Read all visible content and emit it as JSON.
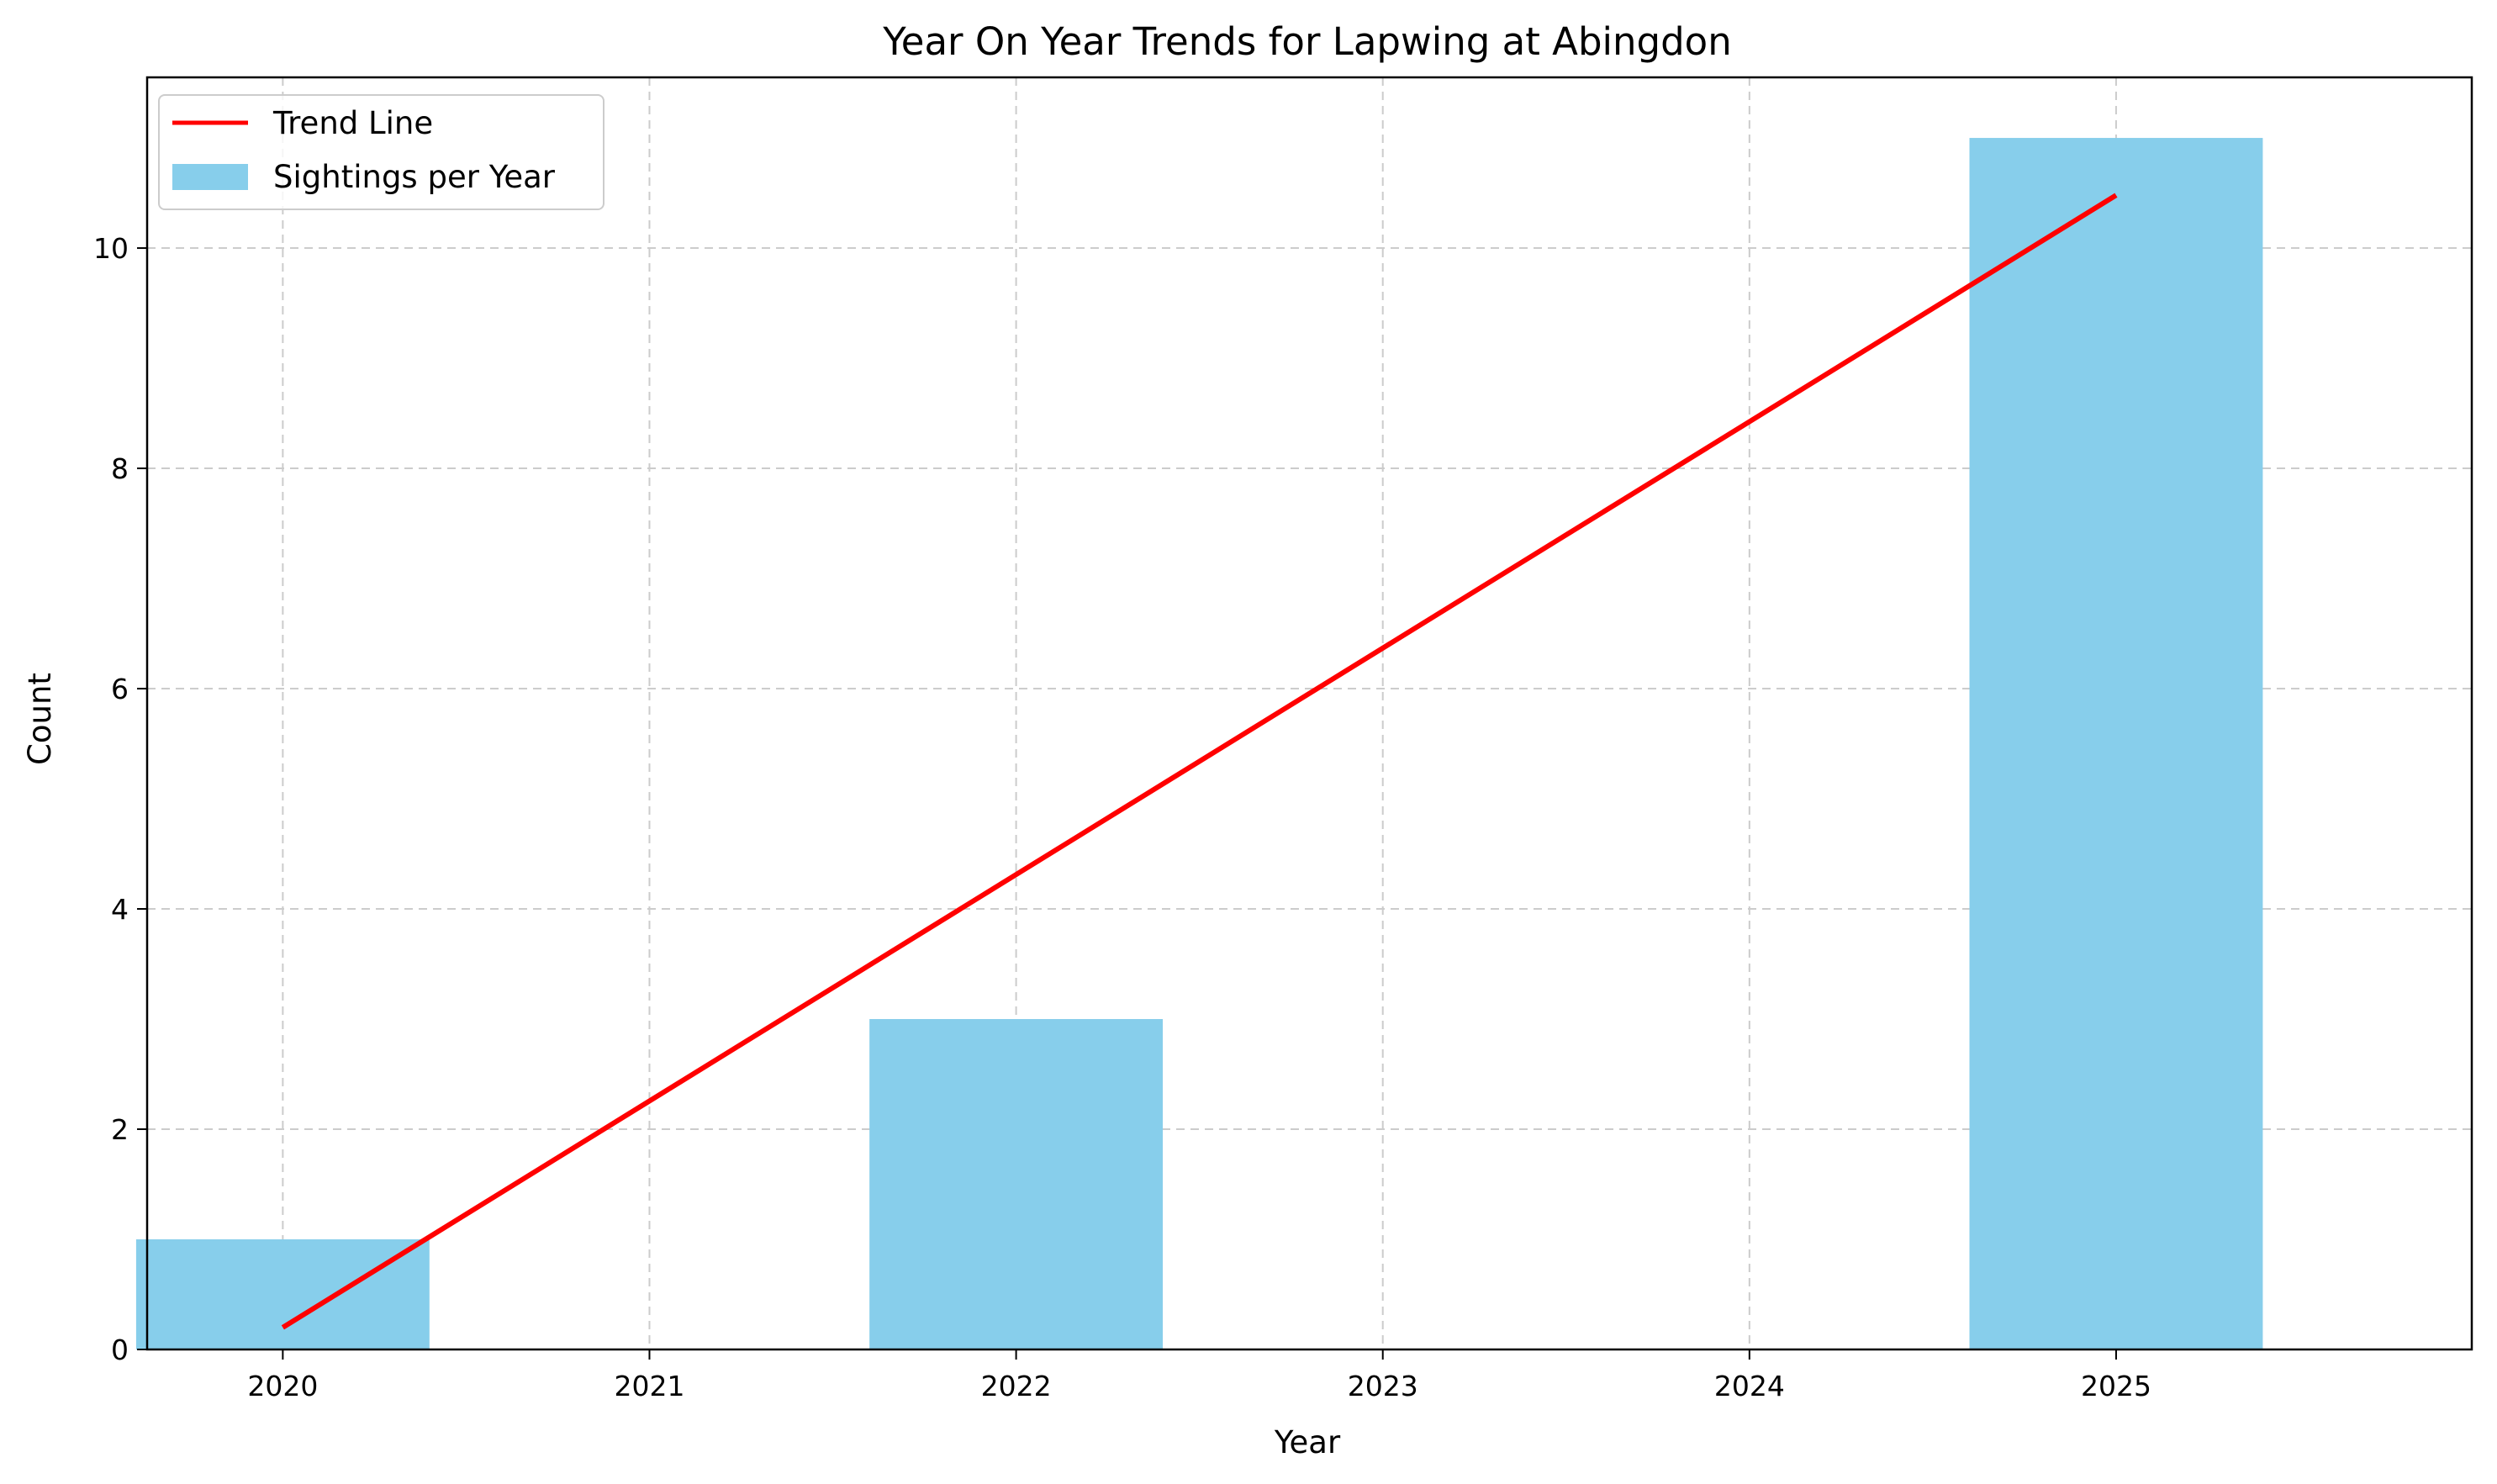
{
  "chart_data": {
    "type": "bar",
    "title": "Year On Year Trends for Lapwing at Abingdon",
    "xlabel": "Year",
    "ylabel": "Count",
    "categories": [
      "2020",
      "2021",
      "2022",
      "2023",
      "2024",
      "2025"
    ],
    "x": [
      2020,
      2021,
      2022,
      2023,
      2024,
      2025
    ],
    "xlim": [
      2019.63,
      2025.97
    ],
    "ylim": [
      0,
      11.55
    ],
    "yticks": [
      0,
      2,
      4,
      6,
      8,
      10
    ],
    "bar_width": 0.8,
    "series": [
      {
        "name": "Sightings per Year",
        "type": "bar",
        "color": "#87ceeb",
        "values": [
          1,
          0,
          3,
          0,
          0,
          11
        ]
      },
      {
        "name": "Trend Line",
        "type": "line",
        "color": "#ff0000",
        "x": [
          2020,
          2025
        ],
        "values": [
          0.2,
          10.48
        ]
      }
    ],
    "grid": true,
    "legend_position": "upper-left"
  }
}
